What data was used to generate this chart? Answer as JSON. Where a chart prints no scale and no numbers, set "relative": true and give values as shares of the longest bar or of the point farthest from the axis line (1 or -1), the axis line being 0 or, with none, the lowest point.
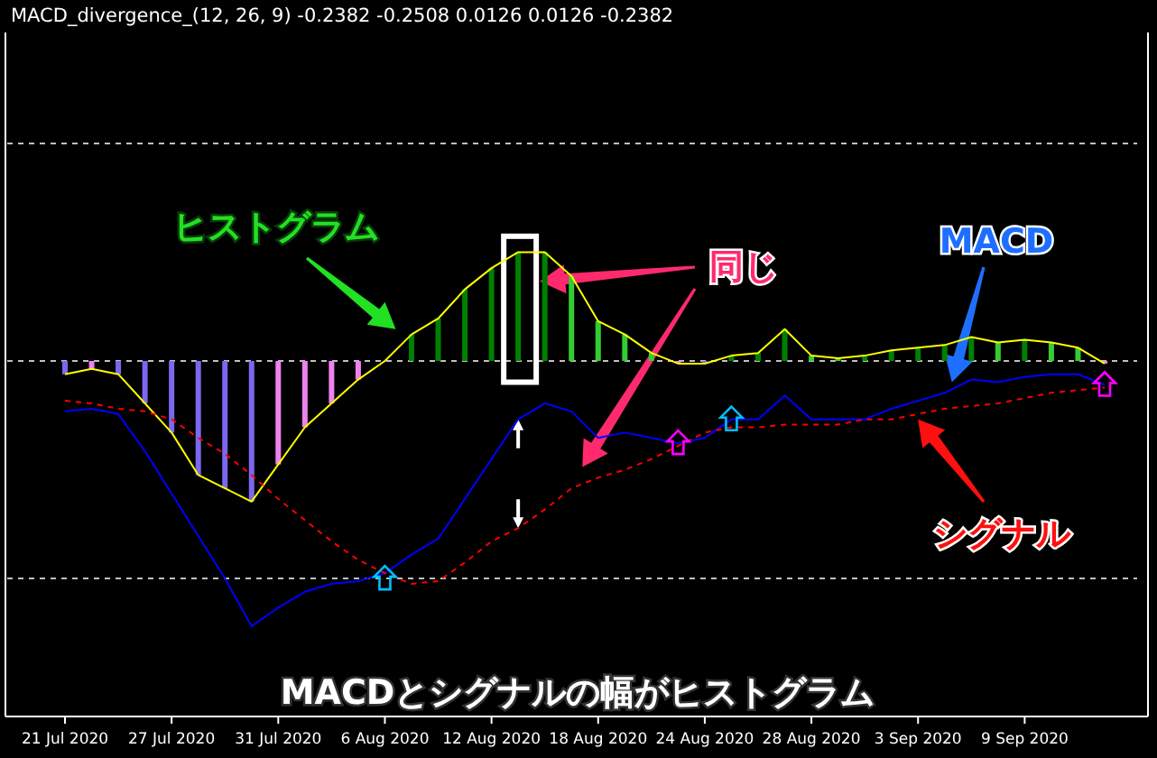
{
  "chart_data": {
    "type": "bar",
    "relative": true,
    "title": "MACD_divergence_(12, 26, 9) -0.2382 -0.2508 0.0126 0.0126 -0.2382",
    "categories": [
      "21 Jul 2020",
      null,
      null,
      null,
      "27 Jul 2020",
      null,
      null,
      null,
      "31 Jul 2020",
      null,
      null,
      null,
      "6 Aug 2020",
      null,
      null,
      null,
      "12 Aug 2020",
      null,
      null,
      null,
      "18 Aug 2020",
      null,
      null,
      null,
      "24 Aug 2020",
      null,
      null,
      null,
      "28 Aug 2020",
      null,
      null,
      null,
      "3 Sep 2020",
      null,
      null,
      null,
      "9 Sep 2020",
      null,
      null,
      null
    ],
    "series": [
      {
        "colors": [
          "#7b68ee",
          "#ee82ee",
          "#7b68ee",
          "#7b68ee",
          "#7b68ee",
          "#7b68ee",
          "#7b68ee",
          "#7b68ee",
          "#ee82ee",
          "#ee82ee",
          "#ee82ee",
          "#ee82ee",
          "#008000",
          "#008000",
          "#008000",
          "#008000",
          "#008000",
          "#008000",
          "#008000",
          "#32cd32",
          "#32cd32",
          "#32cd32",
          "#32cd32",
          "#ee82ee",
          "#7b68ee",
          "#008000",
          "#008000",
          "#008000",
          "#32cd32",
          "#32cd32",
          "#008000",
          "#008000",
          "#008000",
          "#008000",
          "#008000",
          "#32cd32",
          "#008000",
          "#32cd32",
          "#32cd32",
          "#ee82ee"
        ],
        "values": [
          -0.05,
          -0.03,
          -0.05,
          -0.16,
          -0.27,
          -0.43,
          -0.48,
          -0.53,
          -0.39,
          -0.25,
          -0.16,
          -0.07,
          0,
          0.1,
          0.16,
          0.27,
          0.35,
          0.41,
          0.41,
          0.32,
          0.15,
          0.1,
          0.03,
          -0.01,
          -0.01,
          0.02,
          0.03,
          0.12,
          0.02,
          0.01,
          0.02,
          0.04,
          0.05,
          0.06,
          0.09,
          0.07,
          0.08,
          0.07,
          0.05,
          -0.01
        ]
      },
      {
        "type": "line",
        "color": "#ffff00",
        "values": [
          -0.05,
          -0.03,
          -0.05,
          -0.16,
          -0.27,
          -0.43,
          -0.48,
          -0.53,
          -0.39,
          -0.25,
          -0.16,
          -0.07,
          0,
          0.1,
          0.16,
          0.27,
          0.35,
          0.41,
          0.41,
          0.32,
          0.15,
          0.1,
          0.03,
          -0.01,
          -0.01,
          0.02,
          0.03,
          0.12,
          0.02,
          0.01,
          0.02,
          0.04,
          0.05,
          0.06,
          0.09,
          0.07,
          0.08,
          0.07,
          0.05,
          -0.01
        ]
      },
      {
        "type": "line",
        "color": "#0000ff",
        "values": [
          -0.19,
          -0.18,
          -0.2,
          -0.34,
          -0.5,
          -0.66,
          -0.82,
          -1,
          -0.93,
          -0.87,
          -0.84,
          -0.83,
          -0.8,
          -0.73,
          -0.67,
          -0.52,
          -0.37,
          -0.22,
          -0.16,
          -0.19,
          -0.29,
          -0.27,
          -0.29,
          -0.31,
          -0.29,
          -0.22,
          -0.22,
          -0.13,
          -0.22,
          -0.22,
          -0.22,
          -0.18,
          -0.15,
          -0.12,
          -0.07,
          -0.08,
          -0.06,
          -0.05,
          -0.05,
          -0.09
        ]
      },
      {
        "type": "line",
        "color": "#ff0000",
        "line_style": "dashed",
        "values": [
          -0.15,
          -0.16,
          -0.18,
          -0.19,
          -0.22,
          -0.29,
          -0.35,
          -0.43,
          -0.52,
          -0.6,
          -0.68,
          -0.75,
          -0.8,
          -0.84,
          -0.83,
          -0.76,
          -0.68,
          -0.63,
          -0.56,
          -0.48,
          -0.44,
          -0.41,
          -0.37,
          -0.32,
          -0.27,
          -0.25,
          -0.25,
          -0.24,
          -0.24,
          -0.24,
          -0.22,
          -0.22,
          -0.2,
          -0.18,
          -0.17,
          -0.16,
          -0.14,
          -0.12,
          -0.11,
          -0.1
        ]
      },
      {
        "type": "scatter",
        "color": "#00bfff",
        "marker": "triangle",
        "values": [
          null,
          null,
          null,
          null,
          null,
          null,
          null,
          null,
          null,
          null,
          null,
          null,
          -0.82,
          null,
          null,
          null,
          null,
          null,
          null,
          null,
          null,
          null,
          null,
          null,
          null,
          -0.22,
          null,
          null,
          null,
          null,
          null,
          null,
          null,
          null,
          null,
          null,
          null,
          null,
          null,
          null
        ]
      },
      {
        "type": "scatter",
        "color": "#ff00ff",
        "marker": "triangle",
        "values": [
          null,
          null,
          null,
          null,
          null,
          null,
          null,
          null,
          null,
          null,
          null,
          null,
          null,
          null,
          null,
          null,
          null,
          null,
          null,
          null,
          null,
          null,
          null,
          -0.31,
          null,
          null,
          null,
          null,
          null,
          null,
          null,
          null,
          null,
          null,
          null,
          null,
          null,
          null,
          null,
          -0.09
        ]
      }
    ],
    "ref_lines": [
      {
        "axis": "y",
        "value": 0.82,
        "color": "#c0c0c0",
        "line_style": "dashed"
      },
      {
        "axis": "y",
        "value": 0,
        "color": "#c0c0c0",
        "line_style": "dashed"
      },
      {
        "axis": "y",
        "value": -0.82,
        "color": "#c0c0c0",
        "line_style": "dashed"
      }
    ],
    "annotations": [
      "ヒストグラム",
      "同じ",
      "MACD",
      "シグナル",
      "MACDとシグナルの幅がヒストグラム"
    ]
  }
}
